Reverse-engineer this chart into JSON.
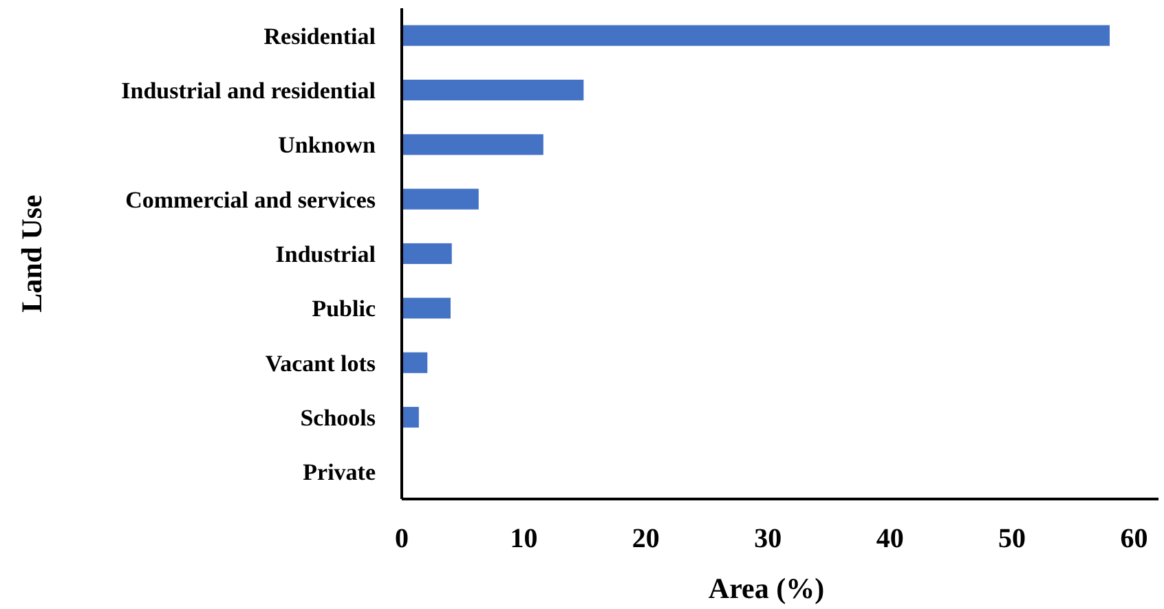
{
  "chart_data": {
    "type": "bar",
    "orientation": "horizontal",
    "xlabel": "Area (%)",
    "ylabel": "Land Use",
    "categories": [
      "Residential",
      "Industrial and residential",
      "Unknown",
      "Commercial and services",
      "Industrial",
      "Public",
      "Vacant lots",
      "Schools",
      "Private"
    ],
    "values": [
      58,
      14.9,
      11.6,
      6.3,
      4.1,
      4,
      2.1,
      1.4,
      0
    ],
    "color": "#4472c4",
    "xlim": [
      0,
      62
    ],
    "xticks": [
      0,
      10,
      20,
      30,
      40,
      50,
      60
    ],
    "grid": false
  }
}
